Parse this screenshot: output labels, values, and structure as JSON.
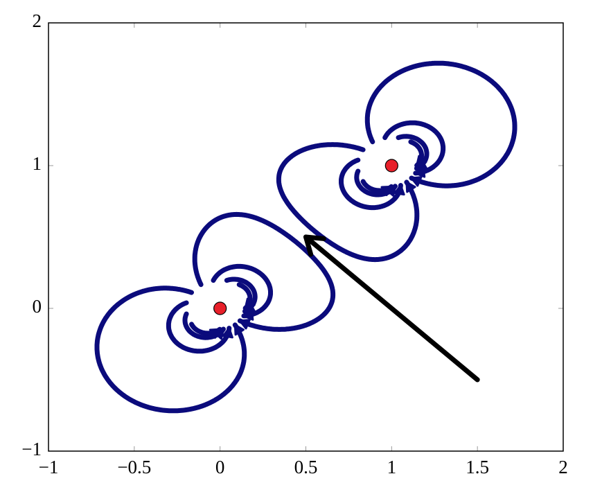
{
  "chart_data": {
    "type": "scatter",
    "x": [
      0,
      1
    ],
    "y": [
      0,
      1
    ],
    "color": "#e8202a",
    "field_color": "#0b0b7c",
    "arrow": {
      "start": [
        1.5,
        -0.5
      ],
      "end": [
        0.5,
        0.5
      ],
      "color": "#000000"
    },
    "xlim": [
      -1,
      2
    ],
    "ylim": [
      -1,
      2
    ],
    "xticks": [
      {
        "value": -1,
        "label": "−1"
      },
      {
        "value": -0.5,
        "label": "−0.5"
      },
      0,
      0.5,
      1,
      1.5,
      2
    ],
    "yticks": [
      {
        "value": -1,
        "label": "−1"
      },
      0,
      1,
      2
    ]
  }
}
